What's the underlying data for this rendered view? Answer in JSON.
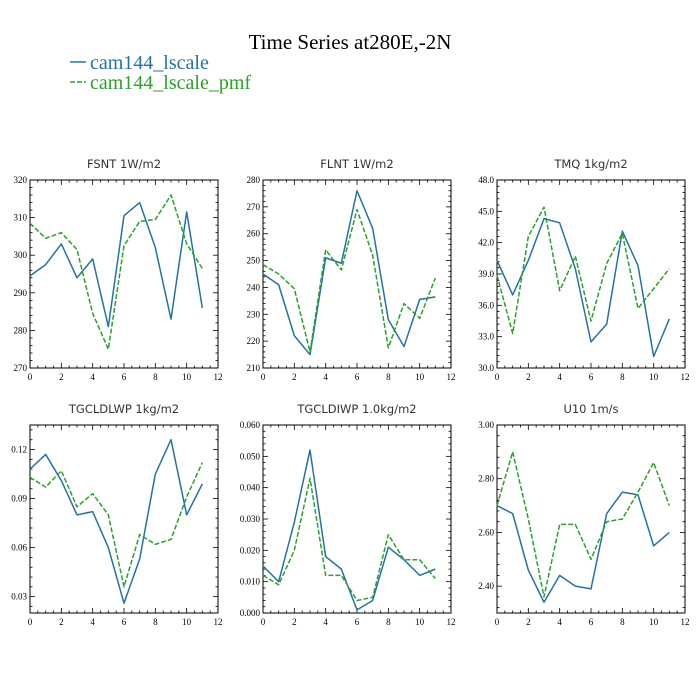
{
  "figure": {
    "title": "Time Series at280E,-2N",
    "legend": [
      {
        "name": "cam144_lscale",
        "color": "#2472a4",
        "dash": "solid"
      },
      {
        "name": "cam144_lscale_pmf",
        "color": "#2ca02c",
        "dash": "dashed"
      }
    ]
  },
  "chart_data": [
    {
      "type": "line",
      "title": "FSNT   1W/m2",
      "x": [
        0,
        1,
        2,
        3,
        4,
        5,
        6,
        7,
        8,
        9,
        10,
        11
      ],
      "xlim": [
        0,
        12
      ],
      "xticks": [
        0,
        2,
        4,
        6,
        8,
        10,
        12
      ],
      "ylim": [
        270,
        320
      ],
      "yticks": [
        270,
        280,
        290,
        300,
        310,
        320
      ],
      "ytick_labels": [
        "270",
        "280",
        "290",
        "300",
        "310",
        "320"
      ],
      "series": [
        {
          "name": "cam144_lscale",
          "values": [
            294.5,
            297.5,
            303,
            294,
            299,
            281,
            310.5,
            314,
            302,
            283,
            311.5,
            286
          ]
        },
        {
          "name": "cam144_lscale_pmf",
          "values": [
            308.5,
            304.5,
            306,
            301.5,
            284.5,
            275,
            302.5,
            309,
            309.5,
            316,
            303,
            296.5
          ]
        }
      ]
    },
    {
      "type": "line",
      "title": "FLNT   1W/m2",
      "x": [
        0,
        1,
        2,
        3,
        4,
        5,
        6,
        7,
        8,
        9,
        10,
        11
      ],
      "xlim": [
        0,
        12
      ],
      "xticks": [
        0,
        2,
        4,
        6,
        8,
        10,
        12
      ],
      "ylim": [
        210,
        280
      ],
      "yticks": [
        210,
        220,
        230,
        240,
        250,
        260,
        270,
        280
      ],
      "ytick_labels": [
        "210",
        "220",
        "230",
        "240",
        "250",
        "260",
        "270",
        "280"
      ],
      "series": [
        {
          "name": "cam144_lscale",
          "values": [
            245,
            241,
            222,
            215,
            251,
            249,
            276,
            262,
            228,
            218,
            235.5,
            236.5
          ]
        },
        {
          "name": "cam144_lscale_pmf",
          "values": [
            248.5,
            245,
            239.5,
            216,
            254,
            246.5,
            269,
            252,
            217.5,
            234,
            228.5,
            243.5
          ]
        }
      ]
    },
    {
      "type": "line",
      "title": "TMQ   1kg/m2",
      "x": [
        0,
        1,
        2,
        3,
        4,
        5,
        6,
        7,
        8,
        9,
        10,
        11
      ],
      "xlim": [
        0,
        12
      ],
      "xticks": [
        0,
        2,
        4,
        6,
        8,
        10,
        12
      ],
      "ylim": [
        30,
        48
      ],
      "yticks": [
        30,
        33,
        36,
        39,
        42,
        45,
        48
      ],
      "ytick_labels": [
        "30.0",
        "33.0",
        "36.0",
        "39.0",
        "42.0",
        "45.0",
        "48.0"
      ],
      "series": [
        {
          "name": "cam144_lscale",
          "values": [
            40.3,
            37,
            40.3,
            44.3,
            43.9,
            39.5,
            32.5,
            34.2,
            43.1,
            39.8,
            31.1,
            34.7
          ]
        },
        {
          "name": "cam144_lscale_pmf",
          "values": [
            38.9,
            33.3,
            42.6,
            45.4,
            37.4,
            40.7,
            34.5,
            40,
            42.9,
            35.7,
            37.6,
            39.5
          ]
        }
      ]
    },
    {
      "type": "line",
      "title": "TGCLDLWP   1kg/m2",
      "x": [
        0,
        1,
        2,
        3,
        4,
        5,
        6,
        7,
        8,
        9,
        10,
        11
      ],
      "xlim": [
        0,
        12
      ],
      "xticks": [
        0,
        2,
        4,
        6,
        8,
        10,
        12
      ],
      "ylim": [
        0.02,
        0.135
      ],
      "yticks": [
        0.03,
        0.06,
        0.09,
        0.12
      ],
      "ytick_labels": [
        "0.03",
        "0.06",
        "0.09",
        "0.12"
      ],
      "series": [
        {
          "name": "cam144_lscale",
          "values": [
            0.108,
            0.117,
            0.101,
            0.08,
            0.082,
            0.06,
            0.026,
            0.053,
            0.105,
            0.126,
            0.08,
            0.099
          ]
        },
        {
          "name": "cam144_lscale_pmf",
          "values": [
            0.103,
            0.097,
            0.107,
            0.085,
            0.093,
            0.08,
            0.036,
            0.068,
            0.062,
            0.065,
            0.091,
            0.112
          ]
        }
      ]
    },
    {
      "type": "line",
      "title": "TGCLDIWP   1.0kg/m2",
      "x": [
        0,
        1,
        2,
        3,
        4,
        5,
        6,
        7,
        8,
        9,
        10,
        11
      ],
      "xlim": [
        0,
        12
      ],
      "xticks": [
        0,
        2,
        4,
        6,
        8,
        10,
        12
      ],
      "ylim": [
        0,
        0.06
      ],
      "yticks": [
        0,
        0.01,
        0.02,
        0.03,
        0.04,
        0.05,
        0.06
      ],
      "ytick_labels": [
        "0.000",
        "0.010",
        "0.020",
        "0.030",
        "0.040",
        "0.050",
        "0.060"
      ],
      "series": [
        {
          "name": "cam144_lscale",
          "values": [
            0.015,
            0.01,
            0.029,
            0.052,
            0.018,
            0.014,
            0.001,
            0.004,
            0.021,
            0.017,
            0.012,
            0.014
          ]
        },
        {
          "name": "cam144_lscale_pmf",
          "values": [
            0.012,
            0.009,
            0.02,
            0.043,
            0.012,
            0.012,
            0.004,
            0.005,
            0.025,
            0.017,
            0.017,
            0.011
          ]
        }
      ]
    },
    {
      "type": "line",
      "title": "U10   1m/s",
      "x": [
        0,
        1,
        2,
        3,
        4,
        5,
        6,
        7,
        8,
        9,
        10,
        11
      ],
      "xlim": [
        0,
        12
      ],
      "xticks": [
        0,
        2,
        4,
        6,
        8,
        10,
        12
      ],
      "ylim": [
        2.3,
        3.0
      ],
      "yticks": [
        2.4,
        2.6,
        2.8,
        3.0
      ],
      "ytick_labels": [
        "2.40",
        "2.60",
        "2.80",
        "3.00"
      ],
      "series": [
        {
          "name": "cam144_lscale",
          "values": [
            2.7,
            2.67,
            2.46,
            2.34,
            2.44,
            2.4,
            2.39,
            2.67,
            2.75,
            2.74,
            2.55,
            2.6
          ]
        },
        {
          "name": "cam144_lscale_pmf",
          "values": [
            2.7,
            2.9,
            2.65,
            2.36,
            2.63,
            2.63,
            2.5,
            2.64,
            2.65,
            2.75,
            2.86,
            2.7
          ]
        }
      ]
    }
  ]
}
